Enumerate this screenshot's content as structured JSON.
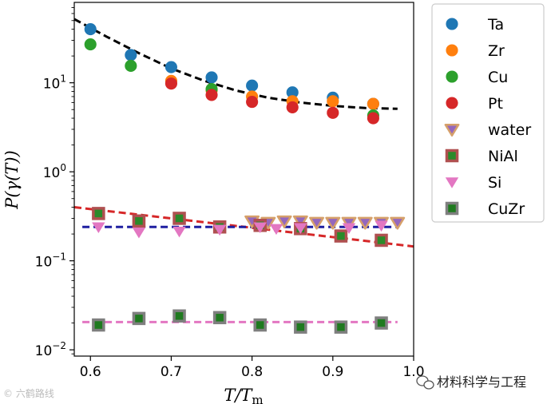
{
  "chart_data": {
    "type": "scatter",
    "xlabel": "T/T",
    "xlabel_sub": "m",
    "ylabel_parts": [
      "P(",
      "γ",
      "(",
      "T",
      "))"
    ],
    "x_scale": "linear",
    "y_scale": "log",
    "xlim": [
      0.58,
      1.0
    ],
    "ylim": [
      0.0085,
      80
    ],
    "x_ticks": [
      0.6,
      0.7,
      0.8,
      0.9,
      1.0
    ],
    "x_tick_labels": [
      "0.6",
      "0.7",
      "0.8",
      "0.9",
      "1.0"
    ],
    "y_ticks": [
      0.01,
      0.1,
      1,
      10
    ],
    "y_tick_labels": [
      {
        "base": "10",
        "exp": "−2"
      },
      {
        "base": "10",
        "exp": "−1"
      },
      {
        "base": "10",
        "exp": "0"
      },
      {
        "base": "10",
        "exp": "1"
      }
    ],
    "legend_position": "right",
    "series": [
      {
        "name": "Ta",
        "marker": "circle",
        "color": "#1f77b4",
        "x": [
          0.6,
          0.65,
          0.7,
          0.75,
          0.8,
          0.85,
          0.9,
          0.95
        ],
        "y": [
          40,
          20.5,
          15,
          11.5,
          9.3,
          7.8,
          6.8,
          5.8
        ]
      },
      {
        "name": "Zr",
        "marker": "circle",
        "color": "#ff7f0e",
        "x": [
          0.7,
          0.75,
          0.8,
          0.85,
          0.9,
          0.95
        ],
        "y": [
          10.5,
          8.2,
          7.0,
          6.2,
          6.2,
          5.8
        ]
      },
      {
        "name": "Cu",
        "marker": "circle",
        "color": "#2ca02c",
        "x": [
          0.6,
          0.65,
          0.75,
          0.95
        ],
        "y": [
          27,
          15.5,
          8.5,
          4.3
        ]
      },
      {
        "name": "Pt",
        "marker": "circle",
        "color": "#d62728",
        "x": [
          0.7,
          0.75,
          0.8,
          0.85,
          0.9,
          0.95
        ],
        "y": [
          9.8,
          7.3,
          6.1,
          5.3,
          4.6,
          4.0
        ]
      },
      {
        "name": "water",
        "marker": "triangle-down",
        "color": "#9467bd",
        "edge": "#d6a06a",
        "x": [
          0.8,
          0.82,
          0.84,
          0.86,
          0.88,
          0.9,
          0.92,
          0.94,
          0.96,
          0.98
        ],
        "y": [
          0.28,
          0.27,
          0.28,
          0.28,
          0.27,
          0.27,
          0.27,
          0.27,
          0.27,
          0.27
        ]
      },
      {
        "name": "NiAl",
        "marker": "square",
        "color": "#2a8a2a",
        "edge": "#b05050",
        "x": [
          0.61,
          0.66,
          0.71,
          0.76,
          0.81,
          0.86,
          0.91,
          0.96
        ],
        "y": [
          0.34,
          0.28,
          0.3,
          0.24,
          0.25,
          0.23,
          0.19,
          0.17
        ]
      },
      {
        "name": "Si",
        "marker": "triangle-down",
        "color": "#e377c2",
        "x": [
          0.61,
          0.66,
          0.71,
          0.76,
          0.81,
          0.83,
          0.86,
          0.92,
          0.96
        ],
        "y": [
          0.24,
          0.21,
          0.215,
          0.225,
          0.24,
          0.23,
          0.235,
          0.235,
          0.25
        ]
      },
      {
        "name": "CuZr",
        "marker": "square",
        "color": "#1f7a1f",
        "edge": "#7f7f7f",
        "x": [
          0.61,
          0.66,
          0.71,
          0.76,
          0.81,
          0.86,
          0.91,
          0.96
        ],
        "y": [
          0.019,
          0.0225,
          0.024,
          0.023,
          0.019,
          0.018,
          0.018,
          0.02
        ]
      }
    ],
    "fit_lines": [
      {
        "color": "#000000",
        "x": [
          0.58,
          0.62,
          0.66,
          0.7,
          0.74,
          0.78,
          0.82,
          0.86,
          0.9,
          0.94,
          0.98
        ],
        "y": [
          52,
          33,
          21.5,
          14.5,
          10.6,
          8.2,
          6.8,
          6.0,
          5.5,
          5.2,
          5.1
        ]
      },
      {
        "color": "#d62728",
        "x": [
          0.58,
          1.0
        ],
        "y": [
          0.4,
          0.145
        ]
      },
      {
        "color": "#1f1fa0",
        "x": [
          0.59,
          0.98
        ],
        "y": [
          0.24,
          0.24
        ]
      },
      {
        "color": "#e377c2",
        "x": [
          0.59,
          0.98
        ],
        "y": [
          0.0205,
          0.0205
        ]
      }
    ]
  },
  "watermark": {
    "left_text": "© 六鹤路线",
    "right_text": "材料科学与工程"
  }
}
